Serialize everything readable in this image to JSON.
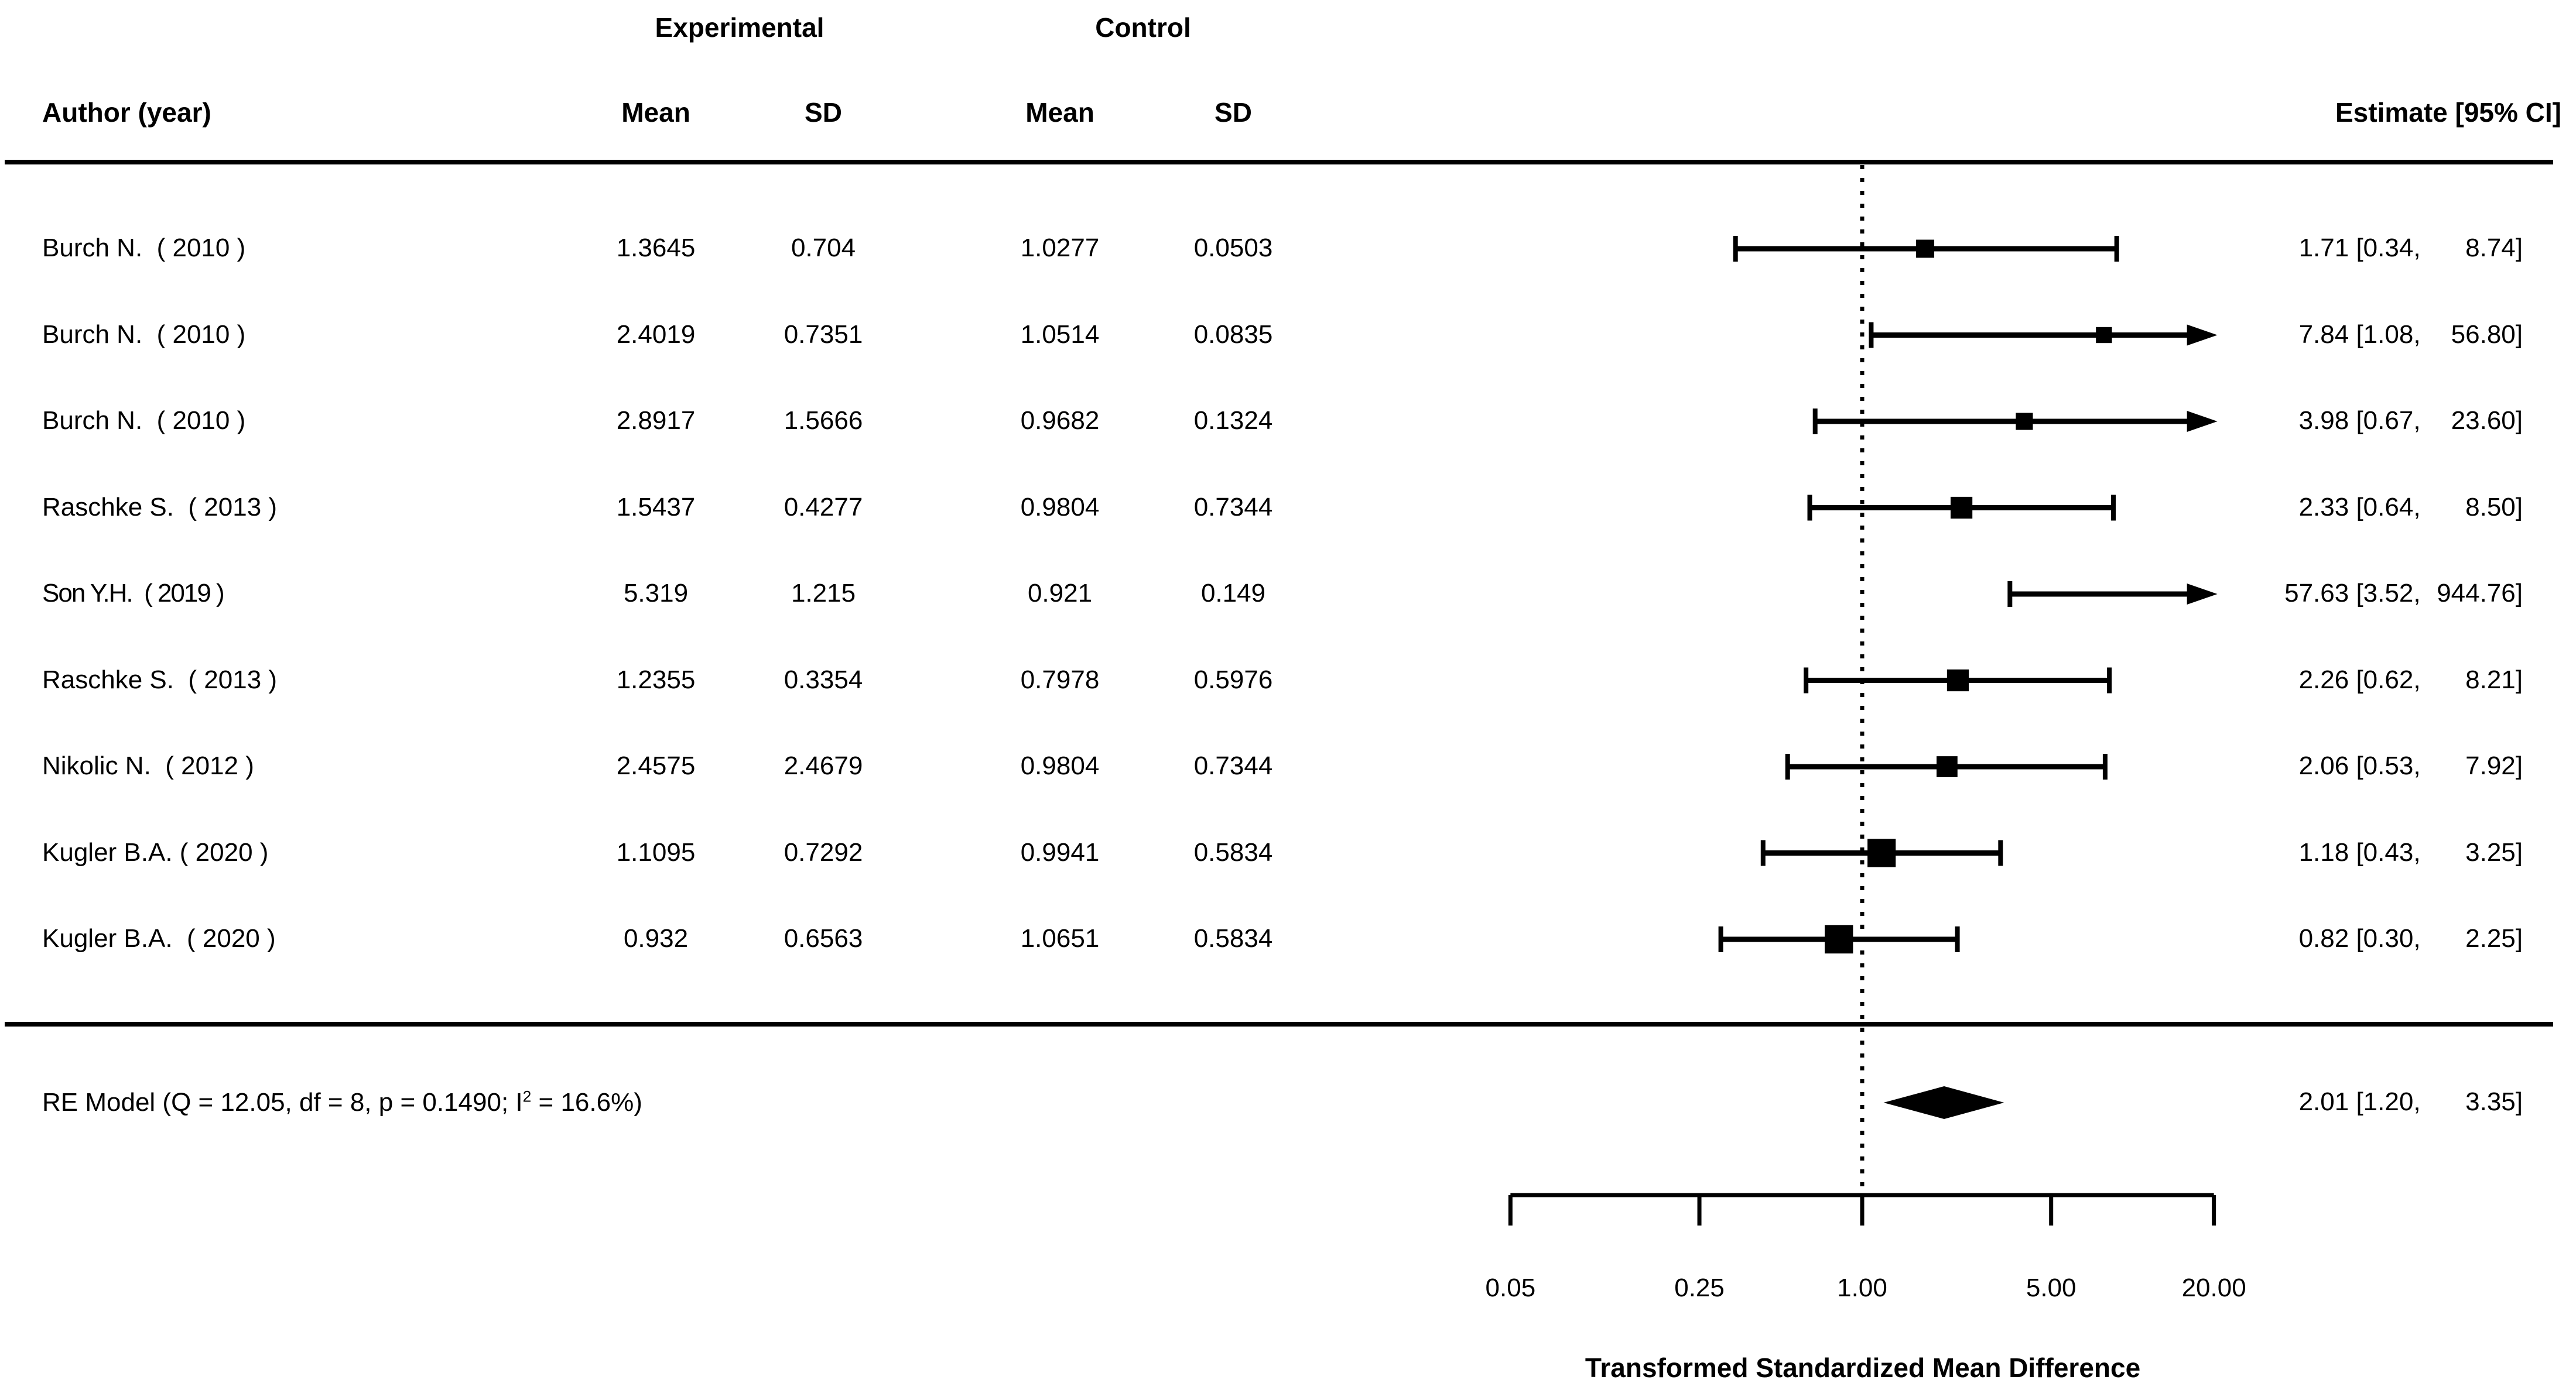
{
  "columns": {
    "author": "Author (year)",
    "exp_group": "Experimental",
    "ctrl_group": "Control",
    "mean": "Mean",
    "sd": "SD",
    "estimate": "Estimate [95% CI]"
  },
  "chart_data": {
    "type": "forest",
    "x_scale": "log",
    "xlabel": "Transformed Standardized Mean Difference",
    "x_ticks": [
      "0.05",
      "0.25",
      "1.00",
      "5.00",
      "20.00"
    ],
    "x_tick_values": [
      0.05,
      0.25,
      1.0,
      5.0,
      20.0
    ],
    "x_range": [
      0.05,
      20.0
    ],
    "reference_line": "1.00",
    "studies": [
      {
        "author": "Burch N.  ( 2010 )",
        "exp_mean": "1.3645",
        "exp_sd": "0.704",
        "ctrl_mean": "1.0277",
        "ctrl_sd": "0.0503",
        "est": "1.71",
        "lo": "0.34",
        "hi": "8.74"
      },
      {
        "author": "Burch N.  ( 2010 )",
        "exp_mean": "2.4019",
        "exp_sd": "0.7351",
        "ctrl_mean": "1.0514",
        "ctrl_sd": "0.0835",
        "est": "7.84",
        "lo": "1.08",
        "hi": "56.80"
      },
      {
        "author": "Burch N.  ( 2010 )",
        "exp_mean": "2.8917",
        "exp_sd": "1.5666",
        "ctrl_mean": "0.9682",
        "ctrl_sd": "0.1324",
        "est": "3.98",
        "lo": "0.67",
        "hi": "23.60"
      },
      {
        "author": "Raschke S.  ( 2013 )",
        "exp_mean": "1.5437",
        "exp_sd": "0.4277",
        "ctrl_mean": "0.9804",
        "ctrl_sd": "0.7344",
        "est": "2.33",
        "lo": "0.64",
        "hi": "8.50"
      },
      {
        "author": "Son Y.H.  ( 2019 )",
        "exp_mean": "5.319",
        "exp_sd": "1.215",
        "ctrl_mean": "0.921",
        "ctrl_sd": "0.149",
        "est": "57.63",
        "lo": "3.52",
        "hi": "944.76"
      },
      {
        "author": "Raschke S.  ( 2013 )",
        "exp_mean": "1.2355",
        "exp_sd": "0.3354",
        "ctrl_mean": "0.7978",
        "ctrl_sd": "0.5976",
        "est": "2.26",
        "lo": "0.62",
        "hi": "8.21"
      },
      {
        "author": "Nikolic N.  ( 2012 )",
        "exp_mean": "2.4575",
        "exp_sd": "2.4679",
        "ctrl_mean": "0.9804",
        "ctrl_sd": "0.7344",
        "est": "2.06",
        "lo": "0.53",
        "hi": "7.92"
      },
      {
        "author": "Kugler B.A. ( 2020 )",
        "exp_mean": "1.1095",
        "exp_sd": "0.7292",
        "ctrl_mean": "0.9941",
        "ctrl_sd": "0.5834",
        "est": "1.18",
        "lo": "0.43",
        "hi": "3.25"
      },
      {
        "author": "Kugler B.A.  ( 2020 )",
        "exp_mean": "0.932",
        "exp_sd": "0.6563",
        "ctrl_mean": "1.0651",
        "ctrl_sd": "0.5834",
        "est": "0.82",
        "lo": "0.30",
        "hi": "2.25"
      }
    ],
    "summary": {
      "label_prefix": "RE Model (Q = 12.05, df = 8, p = 0.1490; I",
      "label_sup": "2",
      "label_suffix": " = 16.6%)",
      "est": "2.01",
      "lo": "1.20",
      "hi": "3.35"
    }
  }
}
